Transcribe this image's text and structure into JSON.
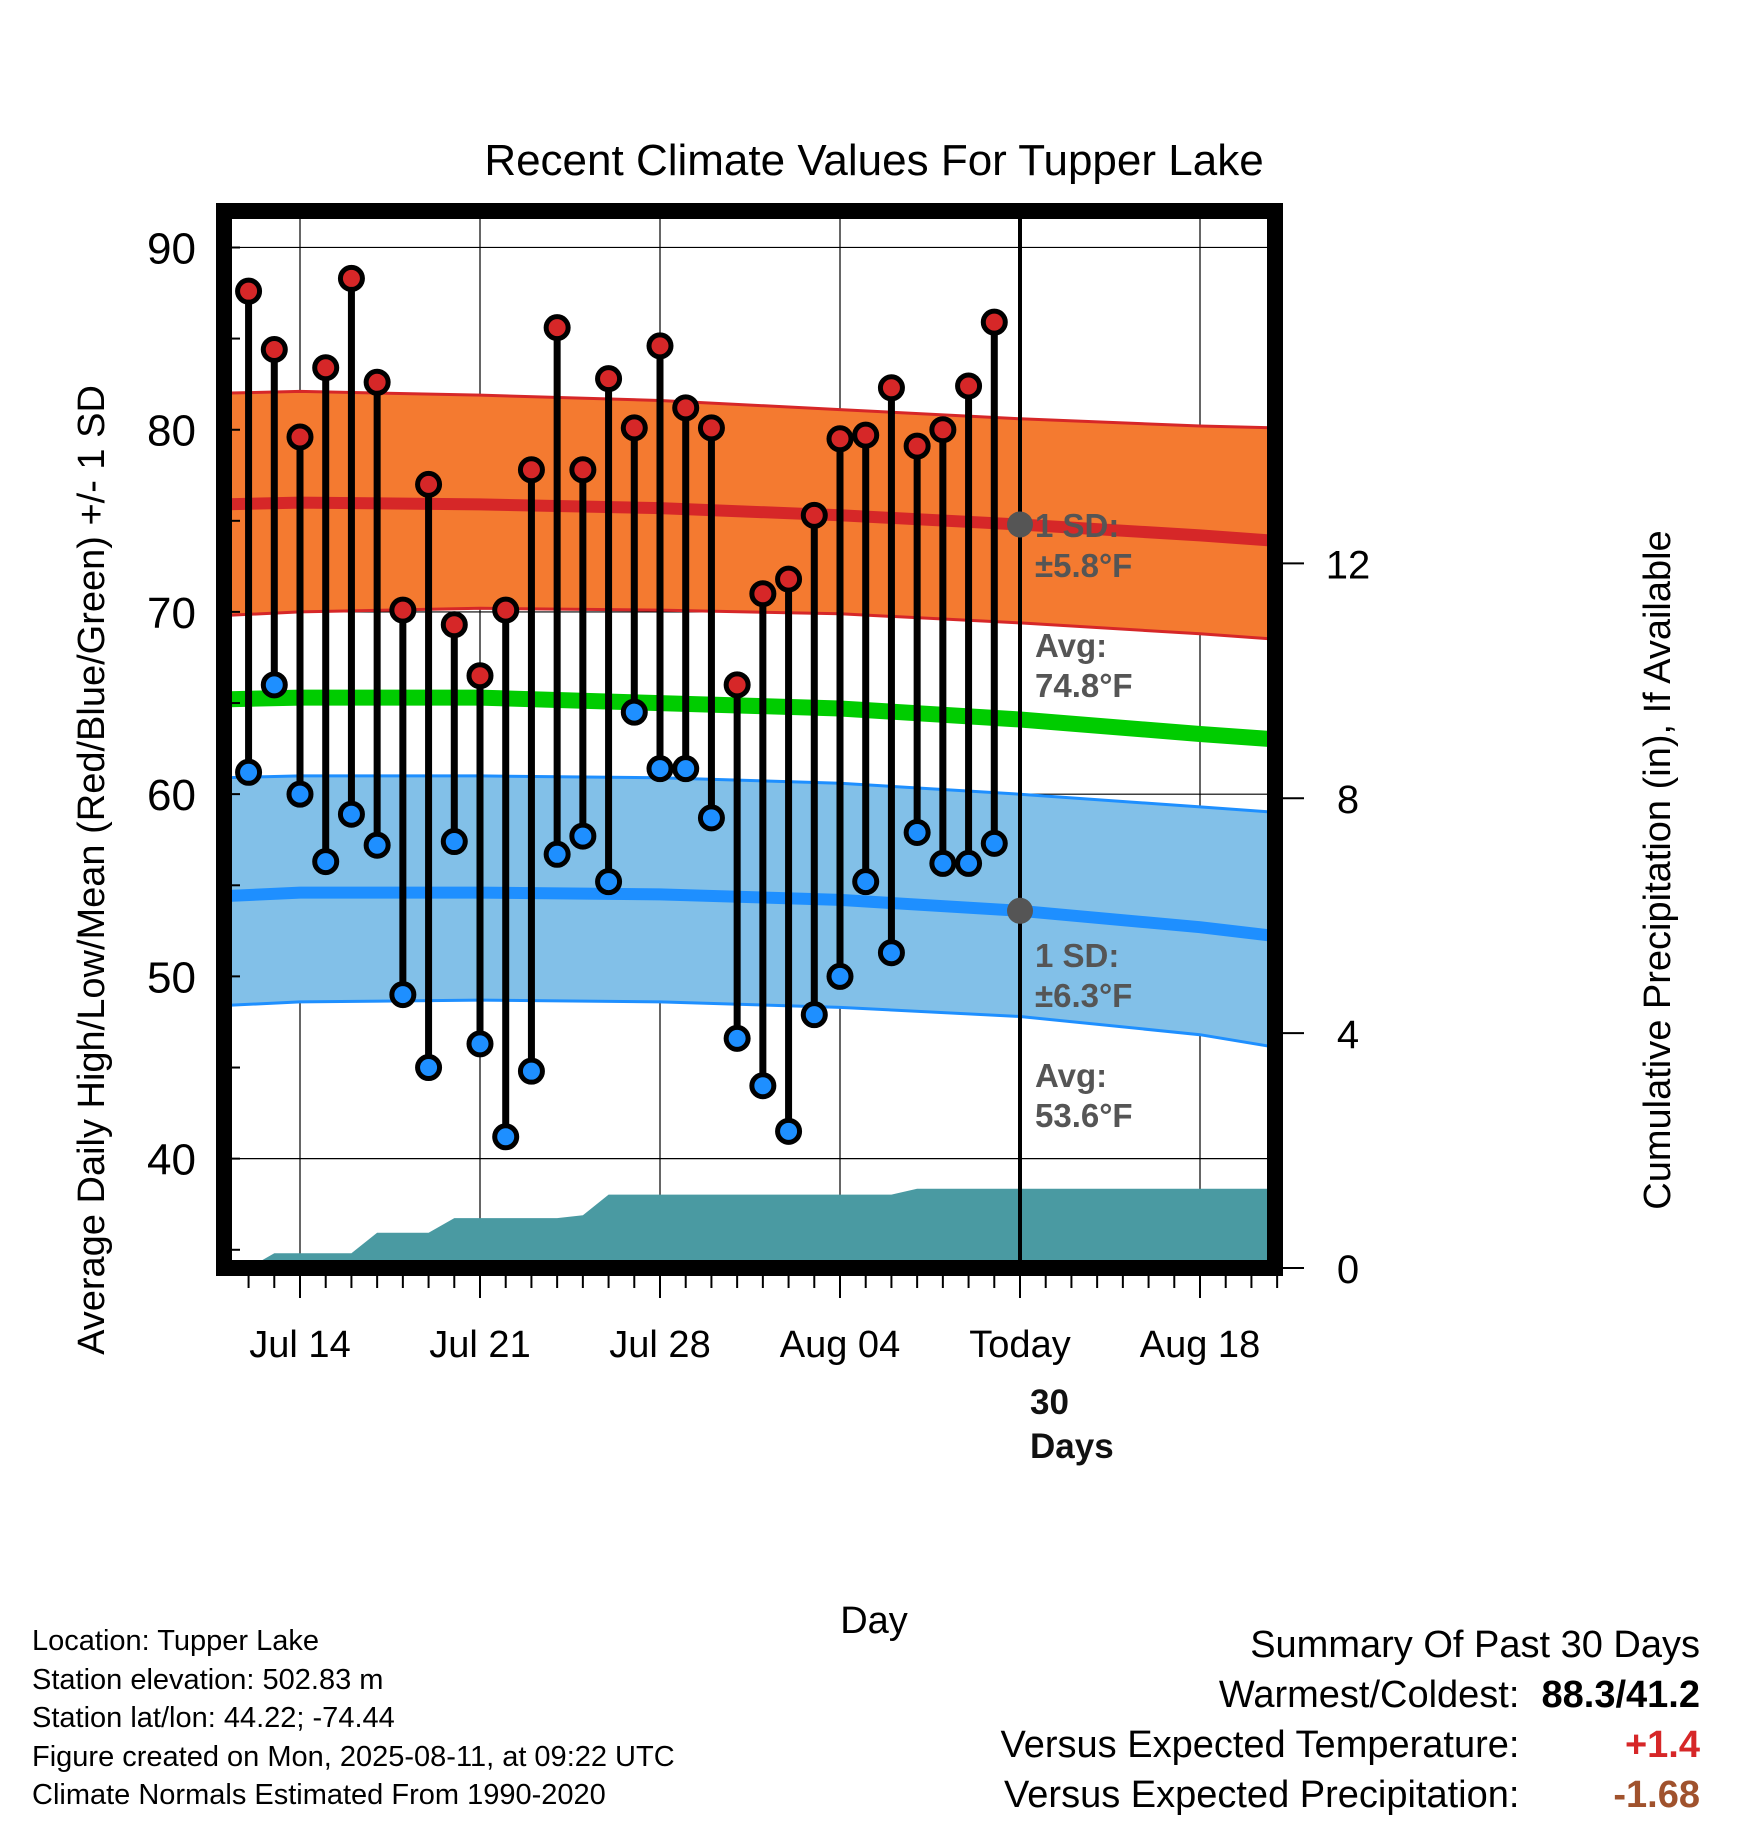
{
  "chart_data": {
    "type": "line",
    "title": "Recent Climate Values For Tupper Lake",
    "xlabel": "Day",
    "ylabel": "Average Daily High/Low/Mean (Red/Blue/Green) +/- 1 SD",
    "y2label": "Cumulative Precipitation (in), If Available",
    "ylim": [
      34,
      92
    ],
    "y2lim": [
      0,
      18
    ],
    "yticks": [
      40,
      50,
      60,
      70,
      80,
      90
    ],
    "y2ticks": [
      0,
      4,
      8,
      12
    ],
    "xrange_days": [
      -31,
      11
    ],
    "xticks": [
      {
        "day": -28,
        "label": "Jul 14"
      },
      {
        "day": -21,
        "label": "Jul 21"
      },
      {
        "day": -14,
        "label": "Jul 28"
      },
      {
        "day": -7,
        "label": "Aug 04"
      },
      {
        "day": 0,
        "label": "Today"
      },
      {
        "day": 7,
        "label": "Aug 18"
      }
    ],
    "grid": true,
    "daily": {
      "start_day": -30,
      "highs": [
        87.6,
        84.4,
        79.6,
        83.4,
        88.3,
        82.6,
        70.1,
        77.0,
        69.3,
        66.5,
        70.1,
        77.8,
        85.6,
        77.8,
        82.8,
        80.1,
        84.6,
        81.2,
        80.1,
        66.0,
        71.0,
        71.8,
        75.3,
        79.5,
        79.7,
        82.3,
        79.1,
        80.0,
        82.4,
        85.9
      ],
      "lows": [
        61.2,
        66.0,
        60.0,
        56.3,
        58.9,
        57.2,
        49.0,
        45.0,
        57.4,
        46.3,
        41.2,
        44.8,
        56.7,
        57.7,
        55.2,
        64.5,
        61.4,
        61.4,
        58.7,
        46.6,
        44.0,
        41.5,
        47.9,
        50.0,
        55.2,
        51.3,
        57.9,
        56.2,
        56.2,
        57.3
      ]
    },
    "normals": {
      "day": [
        -31,
        -28,
        -21,
        -14,
        -7,
        0,
        7,
        10
      ],
      "high_avg": [
        75.9,
        76.0,
        75.9,
        75.7,
        75.3,
        74.8,
        74.2,
        73.9
      ],
      "high_upper": [
        82.0,
        82.1,
        81.9,
        81.6,
        81.1,
        80.6,
        80.2,
        80.1
      ],
      "high_lower": [
        69.8,
        70.0,
        70.2,
        70.1,
        69.9,
        69.4,
        68.8,
        68.5
      ],
      "mean_avg": [
        65.2,
        65.3,
        65.3,
        65.0,
        64.7,
        64.1,
        63.3,
        63.0
      ],
      "low_avg": [
        54.4,
        54.6,
        54.6,
        54.5,
        54.2,
        53.6,
        52.7,
        52.2
      ],
      "low_upper": [
        60.9,
        61.0,
        61.0,
        60.9,
        60.6,
        60.0,
        59.3,
        59.0
      ],
      "low_lower": [
        48.4,
        48.6,
        48.7,
        48.6,
        48.3,
        47.8,
        46.8,
        46.1
      ]
    },
    "precip_cumulative": {
      "day": [
        -31,
        -30,
        -29,
        -28,
        -27,
        -26,
        -25,
        -24,
        -23,
        -22,
        -21,
        -20,
        -19,
        -18,
        -17,
        -16,
        -15,
        -14,
        -13,
        -12,
        -11,
        -10,
        -9,
        -8,
        -7,
        -6,
        -5,
        -4,
        -3,
        -2,
        -1,
        0,
        1,
        10
      ],
      "value": [
        0.0,
        0.0,
        0.25,
        0.25,
        0.25,
        0.25,
        0.6,
        0.6,
        0.6,
        0.85,
        0.85,
        0.85,
        0.85,
        0.85,
        0.9,
        1.25,
        1.25,
        1.25,
        1.25,
        1.25,
        1.25,
        1.25,
        1.25,
        1.25,
        1.25,
        1.25,
        1.25,
        1.35,
        1.35,
        1.35,
        1.35,
        1.35,
        1.35,
        1.35
      ]
    },
    "annotations": {
      "high_sd": "1 SD:\n±5.8°F",
      "high_avg": "Avg:\n74.8°F",
      "low_sd": "1 SD:\n±6.3°F",
      "low_avg": "Avg:\n53.6°F",
      "precip_days": "30\nDays"
    },
    "colors": {
      "high_band": "#f47a30",
      "high_line": "#d62728",
      "mean_line": "#00cc00",
      "low_band": "#82c0e8",
      "low_line": "#1e8fff",
      "precip": "#4a9aa2",
      "high_dot": "#d62728",
      "low_dot": "#1e8fff",
      "annotation_text": "#555555"
    }
  },
  "footer": {
    "location": "Location: Tupper Lake",
    "elevation": "Station elevation: 502.83 m",
    "latlon": "Station lat/lon: 44.22; -74.44",
    "created": "Figure created on Mon, 2025-08-11, at 09:22 UTC",
    "normals": "Climate Normals Estimated From 1990-2020"
  },
  "summary": {
    "title": "Summary Of Past 30 Days",
    "warm_cold_label": "Warmest/Coldest:",
    "warm_cold_value": "88.3/41.2",
    "temp_label": "Versus Expected Temperature:",
    "temp_value": "+1.4",
    "temp_color": "#d62728",
    "precip_label": "Versus Expected Precipitation:",
    "precip_value": "-1.68",
    "precip_color": "#a0522d"
  }
}
